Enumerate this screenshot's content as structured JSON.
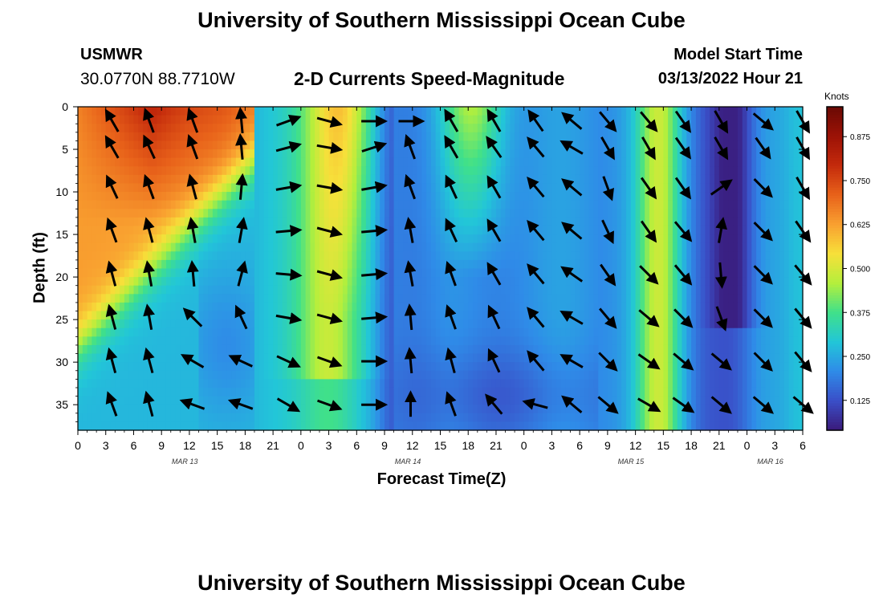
{
  "page": {
    "title_top": "University of Southern Mississippi Ocean Cube",
    "title_bottom": "University of Southern Mississippi Ocean Cube",
    "station": "USMWR",
    "coords": "30.0770N  88.7710W",
    "plot_title": "2-D Currents Speed-Magnitude",
    "model_start_label": "Model Start Time",
    "model_start_value": "03/13/2022 Hour 21"
  },
  "chart_data": {
    "type": "heatmap",
    "title": "2-D Currents Speed-Magnitude",
    "xlabel": "Forecast Time(Z)",
    "ylabel": "Depth (ft)",
    "colorbar_label": "Knots",
    "colorbar_ticks": [
      "0.125",
      "0.250",
      "0.375",
      "0.500",
      "0.625",
      "0.750",
      "0.875"
    ],
    "colorbar_range": [
      0.04,
      0.96
    ],
    "colormap": [
      "#3a1a7a",
      "#3a4fc8",
      "#2f8be8",
      "#22c6d8",
      "#40e08a",
      "#b4ef3c",
      "#f7e03a",
      "#f9a030",
      "#e8621a",
      "#c42a0c",
      "#9c1206",
      "#6a0a04"
    ],
    "x_hours_range": [
      0,
      78
    ],
    "x_tick_labels": [
      "0",
      "3",
      "6",
      "9",
      "12",
      "15",
      "18",
      "21",
      "0",
      "3",
      "6",
      "9",
      "12",
      "15",
      "18",
      "21",
      "0",
      "3",
      "6",
      "9",
      "12",
      "15",
      "18",
      "21",
      "0",
      "3",
      "6"
    ],
    "date_labels": [
      {
        "text": "MAR 13",
        "hour": 11.5
      },
      {
        "text": "MAR 14",
        "hour": 35.5
      },
      {
        "text": "MAR 15",
        "hour": 59.5
      },
      {
        "text": "MAR 16",
        "hour": 74.5
      }
    ],
    "ylim": [
      0,
      38
    ],
    "y_ticks": [
      "0",
      "5",
      "10",
      "15",
      "20",
      "25",
      "30",
      "35"
    ],
    "depths": [
      1.7,
      4.8,
      9.5,
      14.6,
      19.7,
      24.8,
      29.9,
      35.0
    ],
    "vector_hours": [
      3.7,
      7.7,
      12.4,
      17.6,
      22.6,
      27.0,
      31.8,
      35.8,
      40.2,
      44.8,
      49.3,
      53.2,
      57.0,
      61.4,
      65.1,
      69.2,
      73.7,
      78.0
    ],
    "vectors_angle_deg": [
      [
        120,
        110,
        110,
        95,
        20,
        -15,
        0,
        0,
        120,
        120,
        125,
        140,
        -50,
        -50,
        -55,
        -60,
        -40,
        -60
      ],
      [
        120,
        115,
        110,
        95,
        15,
        -10,
        18,
        110,
        120,
        125,
        130,
        150,
        -60,
        -60,
        -55,
        -60,
        -55,
        -60
      ],
      [
        115,
        110,
        105,
        85,
        10,
        -10,
        10,
        110,
        115,
        120,
        130,
        140,
        -70,
        -55,
        -55,
        35,
        -45,
        -60
      ],
      [
        110,
        105,
        100,
        80,
        5,
        -15,
        5,
        100,
        115,
        120,
        130,
        140,
        -65,
        -55,
        -50,
        80,
        -45,
        -55
      ],
      [
        105,
        100,
        95,
        75,
        -5,
        -15,
        5,
        100,
        110,
        120,
        130,
        145,
        -55,
        -45,
        -50,
        -85,
        -45,
        -50
      ],
      [
        105,
        100,
        135,
        115,
        -10,
        -15,
        5,
        95,
        110,
        115,
        130,
        150,
        -50,
        -40,
        -45,
        -70,
        -45,
        -50
      ],
      [
        105,
        105,
        150,
        155,
        -25,
        -20,
        0,
        95,
        105,
        115,
        130,
        150,
        -45,
        -35,
        -40,
        -40,
        -45,
        -50
      ],
      [
        110,
        105,
        160,
        160,
        -30,
        -20,
        0,
        90,
        110,
        130,
        165,
        140,
        -40,
        -30,
        -35,
        -40,
        -40,
        -40
      ]
    ],
    "vectors_note": "Arrow direction per depth row (top to bottom) and forecast column; angle in degrees, 0 = east, 90 = north"
  }
}
